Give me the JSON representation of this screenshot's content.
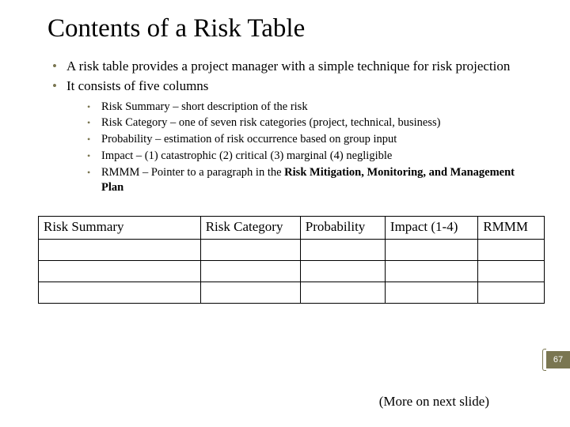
{
  "title": "Contents of a Risk Table",
  "bullets_outer": [
    "A risk table provides a project manager with a simple technique for risk projection",
    "It consists of five columns"
  ],
  "bullets_inner": [
    {
      "text": "Risk Summary – short description of the risk"
    },
    {
      "text": "Risk Category – one of seven risk categories (project, technical, business)"
    },
    {
      "text": "Probability – estimation of risk occurrence based on group input"
    },
    {
      "text": "Impact – (1) catastrophic (2) critical (3) marginal (4) negligible"
    },
    {
      "prefix": "RMMM – Pointer to a paragraph in the ",
      "bold": "Risk Mitigation, Monitoring, and Management Plan"
    }
  ],
  "table_headers": [
    "Risk Summary",
    "Risk Category",
    "Probability",
    "Impact (1-4)",
    "RMMM"
  ],
  "more_note": "(More on next slide)",
  "page_number": "67",
  "colors": {
    "bullet": "#7a7651",
    "badge_bg": "#7a7651",
    "badge_fg": "#ffffff",
    "text": "#000000",
    "bg": "#ffffff"
  }
}
